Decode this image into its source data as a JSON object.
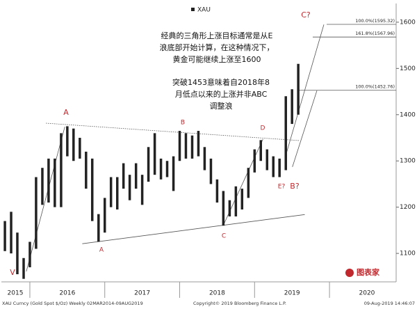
{
  "chart_data": {
    "type": "range-bar",
    "legend": "XAU",
    "footer_left": "XAU Curncy (Gold Spot $/Oz) Weekly 02MAR2014-09AUG2019",
    "footer_center": "Copyright© 2019 Bloomberg Finance L.P.",
    "footer_right": "09-Aug-2019 14:46:07",
    "logo": "图表家",
    "notes": [
      [
        "经典的三角形上涨目标通常是从E",
        "浪底部开始计算，在这种情况下，",
        "黄金可能继续上涨至1600"
      ],
      [
        "突破1453意味着自2018年8",
        "月低点以来的上涨并非ABC",
        "调整浪"
      ]
    ],
    "wave_labels": [
      "A",
      "B",
      "C?",
      "D",
      "E?",
      "B?",
      "C",
      "A",
      "V"
    ],
    "xlim": [
      2015.62,
      2020.89
    ],
    "ylim": [
      1046,
      1648
    ],
    "yticks": [
      1100,
      1200,
      1300,
      1400,
      1500,
      1600
    ],
    "year_boundaries": [
      2016,
      2017,
      2018,
      2019,
      2020
    ],
    "year_labels": [
      {
        "value": 2015.5,
        "label": "2015"
      },
      {
        "value": 2016.5,
        "label": "2016"
      },
      {
        "value": 2017.5,
        "label": "2017"
      },
      {
        "value": 2018.5,
        "label": "2018"
      },
      {
        "value": 2019.5,
        "label": "2019"
      },
      {
        "value": 2020.5,
        "label": "2020"
      }
    ],
    "levels": [
      {
        "value": 1595.32,
        "label": "100.0%(1595.32)"
      },
      {
        "value": 1567.96,
        "label": "161.8%(1567.96)"
      },
      {
        "value": 1452.76,
        "label": "100.0%(1452.76)"
      }
    ],
    "trendlines": [
      {
        "x": [
          2016.215,
          2019.598
        ],
        "y": [
          1381.6,
          1344
        ],
        "dotted": true
      },
      {
        "x": [
          2016.7,
          2019.67
        ],
        "y": [
          1121,
          1184
        ],
        "dotted": false
      },
      {
        "x": [
          2015.953,
          2016.467
        ],
        "y": [
          1061,
          1374
        ],
        "dotted": false
      },
      {
        "x": [
          2018.589,
          2019.112
        ],
        "y": [
          1163,
          1347
        ],
        "dotted": false
      },
      {
        "x": [
          2019.411,
          2019.925
        ],
        "y": [
          1309,
          1595
        ],
        "dotted": false
      },
      {
        "x": [
          2019.505,
          2019.832
        ],
        "y": [
          1287,
          1452
        ],
        "dotted": false
      }
    ],
    "series": [
      {
        "name": "XAU",
        "color": "#222222",
        "x": [
          2015.667,
          2015.75,
          2015.833,
          2015.917,
          2016.0,
          2016.083,
          2016.167,
          2016.25,
          2016.333,
          2016.417,
          2016.5,
          2016.583,
          2016.667,
          2016.75,
          2016.833,
          2016.917,
          2017.0,
          2017.083,
          2017.167,
          2017.25,
          2017.333,
          2017.417,
          2017.5,
          2017.583,
          2017.667,
          2017.75,
          2017.833,
          2017.917,
          2018.0,
          2018.083,
          2018.167,
          2018.25,
          2018.333,
          2018.417,
          2018.5,
          2018.583,
          2018.667,
          2018.75,
          2018.833,
          2018.917,
          2019.0,
          2019.083,
          2019.167,
          2019.25,
          2019.333,
          2019.417,
          2019.5,
          2019.583
        ],
        "high": [
          1170,
          1190,
          1145,
          1090,
          1125,
          1265,
          1285,
          1305,
          1305,
          1360,
          1375,
          1370,
          1350,
          1320,
          1305,
          1185,
          1220,
          1265,
          1265,
          1295,
          1270,
          1295,
          1270,
          1330,
          1360,
          1305,
          1300,
          1310,
          1365,
          1360,
          1355,
          1365,
          1330,
          1305,
          1260,
          1235,
          1215,
          1245,
          1240,
          1285,
          1325,
          1345,
          1325,
          1310,
          1305,
          1440,
          1455,
          1510
        ],
        "low": [
          1105,
          1100,
          1055,
          1045,
          1070,
          1110,
          1205,
          1210,
          1200,
          1200,
          1310,
          1300,
          1305,
          1240,
          1170,
          1125,
          1145,
          1200,
          1195,
          1240,
          1215,
          1240,
          1205,
          1255,
          1270,
          1260,
          1265,
          1235,
          1300,
          1305,
          1305,
          1310,
          1280,
          1250,
          1210,
          1160,
          1180,
          1180,
          1195,
          1220,
          1275,
          1300,
          1280,
          1265,
          1265,
          1280,
          1380,
          1400
        ]
      }
    ]
  }
}
